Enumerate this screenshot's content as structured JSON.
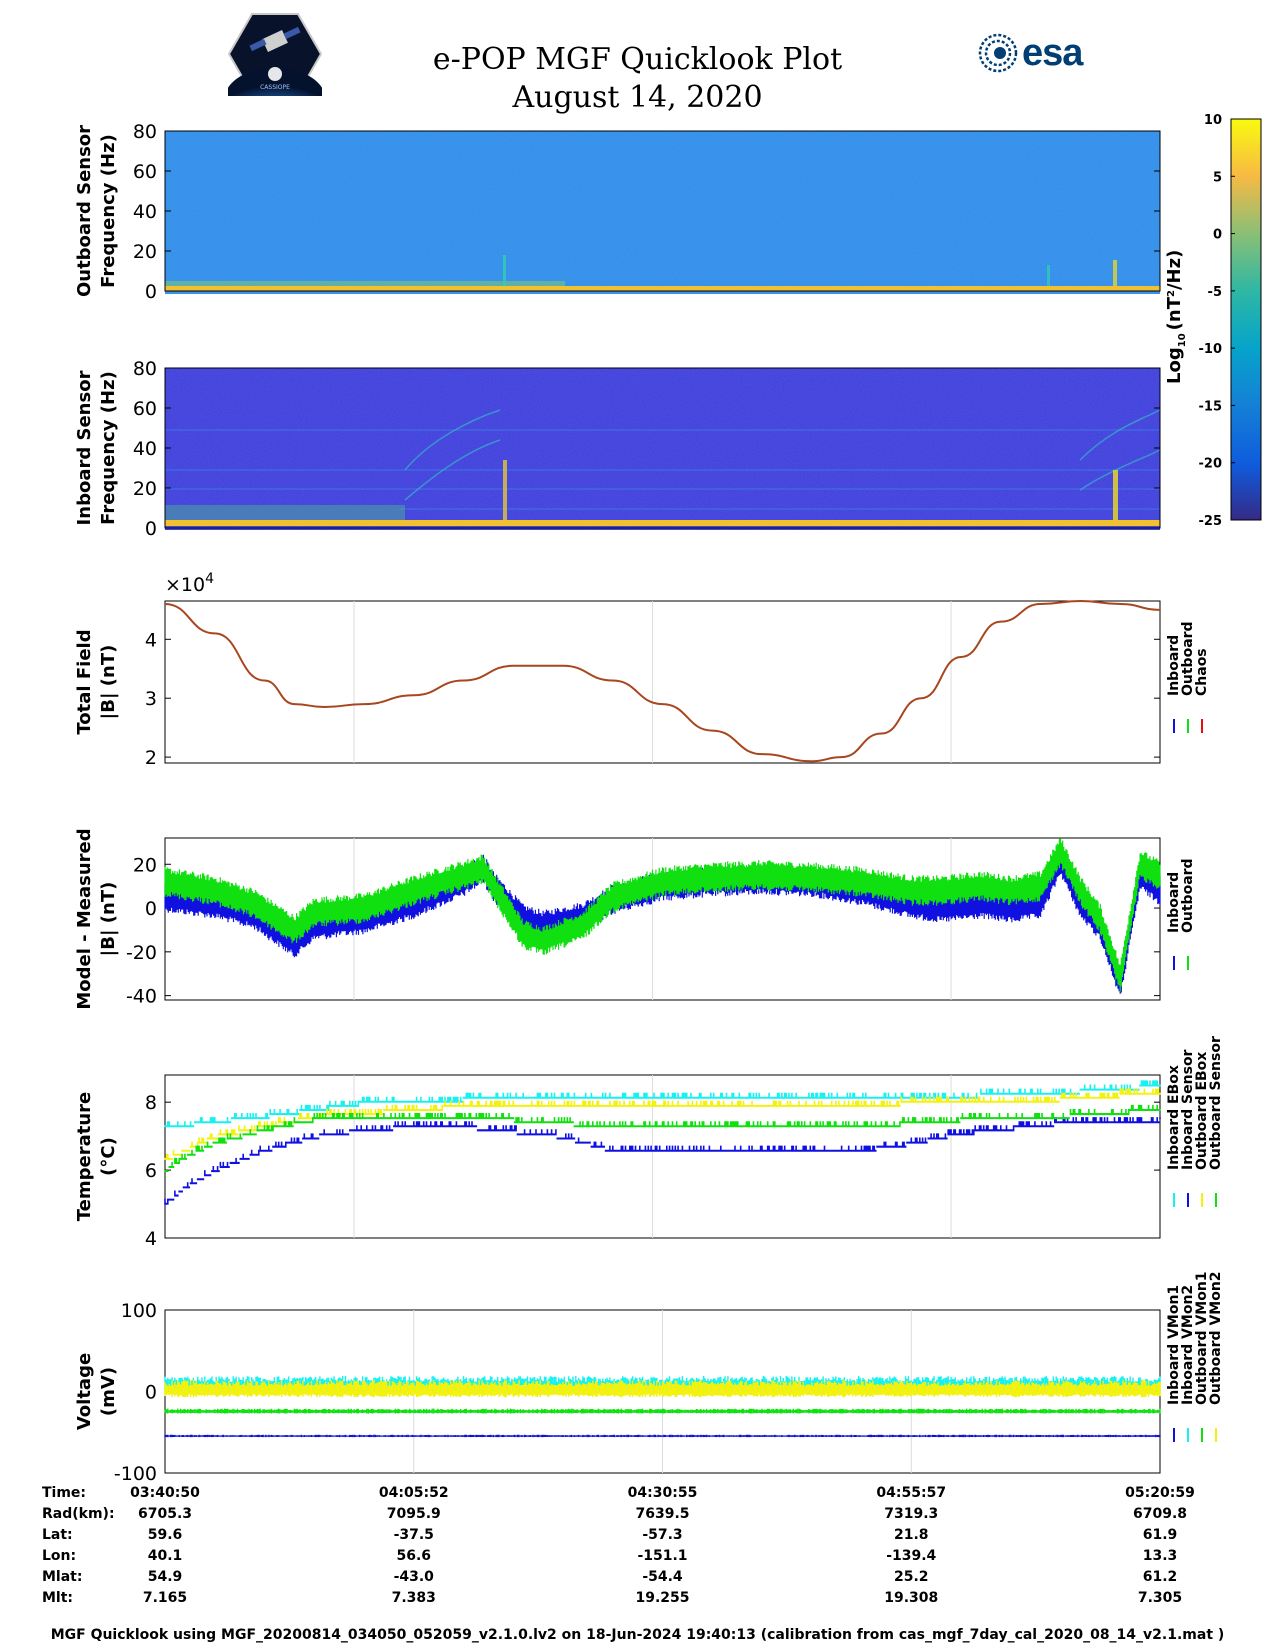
{
  "header": {
    "title": "e-POP MGF Quicklook Plot",
    "date": "August 14, 2020",
    "left_logo_text": "CASSIOPE",
    "right_logo_text": "esa"
  },
  "colors": {
    "inboard": "#1010e0",
    "outboard": "#10e010",
    "chaos": "#e01010",
    "cyan": "#19f0f0",
    "yellow": "#f2f20e",
    "model_line": "#a8461e",
    "spec_bg_outboard": "#2f8ee8",
    "spec_bg_inboard": "#3c3fd9"
  },
  "colorbar": {
    "label": "Log",
    "label_sub": "10",
    "label_unit": "(nT",
    "label_sup": "2",
    "label_tail": "/Hz)",
    "min": -25,
    "max": 10,
    "ticks": [
      "10",
      "5",
      "0",
      "-5",
      "-10",
      "-15",
      "-20",
      "-25"
    ],
    "tick_values": [
      10,
      5,
      0,
      -5,
      -10,
      -15,
      -20,
      -25
    ]
  },
  "chart_data": [
    {
      "type": "heatmap",
      "name": "outboard-spectrogram",
      "ylabel_line1": "Outboard Sensor",
      "ylabel_line2": "Frequency (Hz)",
      "ylim": [
        0,
        80
      ],
      "yticks": [
        "0",
        "20",
        "40",
        "60",
        "80"
      ],
      "ytick_values": [
        0,
        20,
        40,
        60,
        80
      ]
    },
    {
      "type": "heatmap",
      "name": "inboard-spectrogram",
      "ylabel_line1": "Inboard Sensor",
      "ylabel_line2": "Frequency (Hz)",
      "ylim": [
        0,
        80
      ],
      "yticks": [
        "0",
        "20",
        "40",
        "60",
        "80"
      ],
      "ytick_values": [
        0,
        20,
        40,
        60,
        80
      ]
    },
    {
      "type": "line",
      "name": "total-field",
      "ylabel_line1": "Total Field",
      "ylabel_line2": "|B| (nT)",
      "multiplier": "×10",
      "multiplier_exp": "4",
      "ylim": [
        1.9,
        4.65
      ],
      "yticks": [
        "2",
        "3",
        "4"
      ],
      "ytick_values": [
        2,
        3,
        4
      ],
      "x_frac": [
        0,
        0.05,
        0.1,
        0.13,
        0.16,
        0.2,
        0.25,
        0.3,
        0.35,
        0.4,
        0.45,
        0.5,
        0.55,
        0.6,
        0.65,
        0.68,
        0.72,
        0.76,
        0.8,
        0.84,
        0.88,
        0.92,
        0.96,
        1.0
      ],
      "values": [
        4.6,
        4.1,
        3.3,
        2.9,
        2.85,
        2.9,
        3.05,
        3.3,
        3.55,
        3.55,
        3.3,
        2.9,
        2.45,
        2.05,
        1.93,
        2.0,
        2.4,
        3.0,
        3.7,
        4.3,
        4.6,
        4.65,
        4.6,
        4.5
      ],
      "legend": [
        "Inboard",
        "Outboard",
        "Chaos"
      ]
    },
    {
      "type": "line",
      "name": "model-minus-measured",
      "ylabel_line1": "Model - Measured",
      "ylabel_line2": "|B| (nT)",
      "ylim": [
        -42,
        32
      ],
      "yticks": [
        "20",
        "0",
        "-20",
        "-40"
      ],
      "ytick_values": [
        20,
        0,
        -20,
        -40
      ],
      "x_frac": [
        0,
        0.05,
        0.09,
        0.13,
        0.15,
        0.2,
        0.25,
        0.3,
        0.32,
        0.33,
        0.36,
        0.38,
        0.42,
        0.45,
        0.5,
        0.55,
        0.6,
        0.65,
        0.7,
        0.75,
        0.78,
        0.82,
        0.85,
        0.88,
        0.9,
        0.92,
        0.94,
        0.96,
        0.98,
        1.0
      ],
      "series": [
        {
          "name": "Inboard",
          "values": [
            5,
            2,
            -3,
            -16,
            -8,
            -5,
            2,
            12,
            18,
            10,
            -5,
            -8,
            -4,
            4,
            10,
            12,
            13,
            12,
            8,
            2,
            0,
            2,
            0,
            2,
            22,
            2,
            -8,
            -35,
            15,
            8
          ]
        },
        {
          "name": "Outboard",
          "values": [
            12,
            8,
            2,
            -10,
            -2,
            0,
            8,
            15,
            18,
            10,
            -12,
            -15,
            -8,
            5,
            12,
            14,
            15,
            14,
            12,
            8,
            8,
            10,
            8,
            10,
            26,
            8,
            -5,
            -32,
            20,
            15
          ]
        }
      ],
      "legend": [
        "Inboard",
        "Outboard"
      ]
    },
    {
      "type": "line",
      "name": "temperature",
      "ylabel_line1": "Temperature",
      "ylabel_line2": "(°C)",
      "ylim": [
        4,
        8.8
      ],
      "yticks": [
        "4",
        "6",
        "8"
      ],
      "ytick_values": [
        4,
        6,
        8
      ],
      "x_frac": [
        0,
        0.02,
        0.05,
        0.1,
        0.15,
        0.2,
        0.25,
        0.3,
        0.4,
        0.45,
        0.5,
        0.6,
        0.7,
        0.75,
        0.8,
        0.9,
        1.0
      ],
      "series": [
        {
          "name": "Inboard EBox",
          "values": [
            7.3,
            7.35,
            7.45,
            7.6,
            7.8,
            8.0,
            8.05,
            8.1,
            8.1,
            8.1,
            8.1,
            8.1,
            8.1,
            8.15,
            8.2,
            8.3,
            8.5
          ]
        },
        {
          "name": "Inboard Sensor",
          "values": [
            5.0,
            5.5,
            6.0,
            6.6,
            7.0,
            7.2,
            7.3,
            7.3,
            7.0,
            6.6,
            6.6,
            6.6,
            6.6,
            6.8,
            7.1,
            7.4,
            7.5
          ]
        },
        {
          "name": "Outboard EBox",
          "values": [
            6.3,
            6.6,
            7.0,
            7.3,
            7.6,
            7.7,
            7.8,
            7.9,
            7.9,
            7.9,
            7.9,
            7.9,
            7.9,
            8.0,
            8.0,
            8.1,
            8.3
          ]
        },
        {
          "name": "Outboard Sensor",
          "values": [
            6.0,
            6.4,
            6.8,
            7.2,
            7.5,
            7.5,
            7.6,
            7.6,
            7.4,
            7.3,
            7.3,
            7.3,
            7.3,
            7.4,
            7.5,
            7.6,
            7.8
          ]
        }
      ],
      "legend": [
        "Inboard EBox",
        "Inboard Sensor",
        "Outboard EBox",
        "Outboard Sensor"
      ]
    },
    {
      "type": "line",
      "name": "voltage",
      "ylabel_line1": "Voltage",
      "ylabel_line2": "(mV)",
      "ylim": [
        -100,
        100
      ],
      "yticks": [
        "100",
        "0",
        "-100"
      ],
      "ytick_values": [
        100,
        0,
        -100
      ],
      "series": [
        {
          "name": "Inboard VMon1",
          "values": [
            -55,
            -55
          ]
        },
        {
          "name": "Inboard VMon2",
          "values": [
            5,
            5
          ]
        },
        {
          "name": "Outboard VMon1",
          "values": [
            -25,
            -25
          ]
        },
        {
          "name": "Outboard VMon2",
          "values": [
            0,
            0
          ]
        }
      ],
      "legend": [
        "Inboard VMon1",
        "Inboard VMon2",
        "Outboard VMon1",
        "Outboard VMon2"
      ]
    }
  ],
  "ephemeris": {
    "labels": [
      "Time:",
      "Rad(km):",
      "Lat:",
      "Lon:",
      "Mlat:",
      "Mlt:"
    ],
    "columns": [
      [
        "03:40:50",
        "6705.3",
        "59.6",
        "40.1",
        "54.9",
        "7.165"
      ],
      [
        "04:05:52",
        "7095.9",
        "-37.5",
        "56.6",
        "-43.0",
        "7.383"
      ],
      [
        "04:30:55",
        "7639.5",
        "-57.3",
        "-151.1",
        "-54.4",
        "19.255"
      ],
      [
        "04:55:57",
        "7319.3",
        "21.8",
        "-139.4",
        "25.2",
        "19.308"
      ],
      [
        "05:20:59",
        "6709.8",
        "61.9",
        "13.3",
        "61.2",
        "7.305"
      ]
    ]
  },
  "footer": "MGF Quicklook using MGF_20200814_034050_052059_v2.1.0.lv2 on 18-Jun-2024 19:40:13 (calibration from cas_mgf_7day_cal_2020_08_14_v2.1.mat )"
}
